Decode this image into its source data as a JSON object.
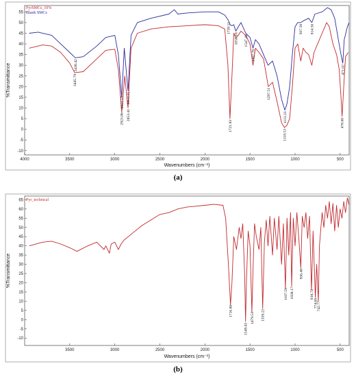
{
  "chart_data": [
    {
      "panel": "(a)",
      "type": "line",
      "xlabel": "Wavenumbers (cm⁻¹)",
      "ylabel": "%Transmittance",
      "xlim": [
        4000,
        400
      ],
      "ylim": [
        -12,
        58
      ],
      "x_ticks": [
        4000,
        3500,
        3000,
        2500,
        2000,
        1500,
        1000,
        500
      ],
      "y_ticks": [
        -10,
        -5,
        0,
        5,
        10,
        15,
        20,
        25,
        30,
        35,
        40,
        45,
        50,
        55
      ],
      "legend_position": "top-left",
      "series": [
        {
          "name": "PyrSMCs_10%",
          "color": "#c0282d",
          "points": [
            [
              3950,
              38
            ],
            [
              3800,
              39.5
            ],
            [
              3700,
              39
            ],
            [
              3600,
              36
            ],
            [
              3500,
              31
            ],
            [
              3445,
              26.5
            ],
            [
              3350,
              27
            ],
            [
              3200,
              33
            ],
            [
              3100,
              37
            ],
            [
              3000,
              37.5
            ],
            [
              2960,
              28
            ],
            [
              2923,
              8
            ],
            [
              2890,
              25
            ],
            [
              2853,
              10
            ],
            [
              2820,
              38
            ],
            [
              2750,
              45
            ],
            [
              2600,
              47
            ],
            [
              2400,
              48
            ],
            [
              2200,
              48.5
            ],
            [
              2000,
              49
            ],
            [
              1850,
              48.5
            ],
            [
              1780,
              47
            ],
            [
              1745,
              30
            ],
            [
              1722,
              5
            ],
            [
              1700,
              25
            ],
            [
              1680,
              45
            ],
            [
              1658,
              43
            ],
            [
              1630,
              44
            ],
            [
              1600,
              46
            ],
            [
              1547,
              44
            ],
            [
              1500,
              40
            ],
            [
              1467,
              30
            ],
            [
              1440,
              38
            ],
            [
              1400,
              36
            ],
            [
              1350,
              33
            ],
            [
              1297,
              20
            ],
            [
              1250,
              22
            ],
            [
              1200,
              13
            ],
            [
              1150,
              3
            ],
            [
              1118,
              0.8
            ],
            [
              1090,
              2
            ],
            [
              1060,
              5
            ],
            [
              1030,
              20
            ],
            [
              1000,
              38
            ],
            [
              970,
              40
            ],
            [
              937,
              32
            ],
            [
              910,
              38
            ],
            [
              880,
              36
            ],
            [
              850,
              35
            ],
            [
              814,
              30
            ],
            [
              790,
              36
            ],
            [
              750,
              40
            ],
            [
              700,
              45
            ],
            [
              650,
              50
            ],
            [
              620,
              48
            ],
            [
              580,
              40
            ],
            [
              540,
              35
            ],
            [
              510,
              28
            ],
            [
              490,
              15
            ],
            [
              478,
              6
            ],
            [
              460,
              20
            ],
            [
              440,
              34
            ],
            [
              410,
              36
            ]
          ],
          "annotations": [
            {
              "x": 3445.79,
              "label": "3445.79"
            },
            {
              "x": 2923.86,
              "label": "2923.86"
            },
            {
              "x": 2853.41,
              "label": "2853.41"
            },
            {
              "x": 1721.93,
              "label": "1721.93"
            },
            {
              "x": 1297.51,
              "label": "1297.51"
            },
            {
              "x": 1118.53,
              "label": "1118.53"
            },
            {
              "x": 478.0,
              "label": "478.00"
            }
          ]
        },
        {
          "name": "Blank SMCs",
          "color": "#2a2a9c",
          "points": [
            [
              3950,
              45
            ],
            [
              3850,
              45.5
            ],
            [
              3700,
              44
            ],
            [
              3600,
              40
            ],
            [
              3500,
              36
            ],
            [
              3438,
              33.5
            ],
            [
              3350,
              34
            ],
            [
              3200,
              39
            ],
            [
              3100,
              43
            ],
            [
              3000,
              44
            ],
            [
              2960,
              35
            ],
            [
              2923,
              15
            ],
            [
              2895,
              38
            ],
            [
              2853,
              18
            ],
            [
              2820,
              44
            ],
            [
              2750,
              50
            ],
            [
              2600,
              52
            ],
            [
              2400,
              54
            ],
            [
              2340,
              56
            ],
            [
              2300,
              54
            ],
            [
              2200,
              54.5
            ],
            [
              2000,
              55
            ],
            [
              1850,
              55
            ],
            [
              1780,
              53.5
            ],
            [
              1740,
              51
            ],
            [
              1720,
              49
            ],
            [
              1700,
              48.5
            ],
            [
              1680,
              49
            ],
            [
              1658,
              46
            ],
            [
              1630,
              48
            ],
            [
              1600,
              50
            ],
            [
              1547,
              45
            ],
            [
              1500,
              43
            ],
            [
              1467,
              38
            ],
            [
              1440,
              42
            ],
            [
              1400,
              40
            ],
            [
              1300,
              30
            ],
            [
              1250,
              32
            ],
            [
              1200,
              25
            ],
            [
              1150,
              14
            ],
            [
              1113,
              9
            ],
            [
              1090,
              12
            ],
            [
              1060,
              20
            ],
            [
              1030,
              35
            ],
            [
              1000,
              48
            ],
            [
              970,
              50
            ],
            [
              937,
              50
            ],
            [
              900,
              51
            ],
            [
              850,
              52
            ],
            [
              814,
              50
            ],
            [
              780,
              54
            ],
            [
              700,
              55
            ],
            [
              640,
              57
            ],
            [
              600,
              56
            ],
            [
              560,
              52
            ],
            [
              520,
              42
            ],
            [
              490,
              35
            ],
            [
              471,
              31
            ],
            [
              455,
              42
            ],
            [
              420,
              48
            ],
            [
              400,
              50
            ]
          ],
          "annotations": [
            {
              "x": 3438.42,
              "label": "3438.42"
            },
            {
              "x": 2921.57,
              "label": "2921.57"
            },
            {
              "x": 2853.31,
              "label": "2853.31"
            },
            {
              "x": 1739.11,
              "label": "1739.11"
            },
            {
              "x": 1658.1,
              "label": "1658.10"
            },
            {
              "x": 1547.4,
              "label": "1547.40"
            },
            {
              "x": 1467.78,
              "label": "1467.78"
            },
            {
              "x": 1113.33,
              "label": "1113.33"
            },
            {
              "x": 937.58,
              "label": "937.58"
            },
            {
              "x": 814.56,
              "label": "814.56"
            },
            {
              "x": 471.02,
              "label": "471.02"
            }
          ]
        }
      ]
    },
    {
      "panel": "(b)",
      "type": "line",
      "xlabel": "Wavenumbers (cm⁻¹)",
      "ylabel": "%Transmittance",
      "xlim": [
        4000,
        400
      ],
      "ylim": [
        -14,
        67
      ],
      "x_ticks": [
        3500,
        3000,
        2500,
        2000,
        1500,
        1000,
        500
      ],
      "y_ticks": [
        -10,
        -5,
        0,
        5,
        10,
        15,
        20,
        25,
        30,
        35,
        40,
        45,
        50,
        55,
        60,
        65
      ],
      "legend_position": "top-left",
      "series": [
        {
          "name": "Pyr_technical",
          "color": "#c0282d",
          "points": [
            [
              3950,
              40
            ],
            [
              3800,
              42
            ],
            [
              3700,
              42.5
            ],
            [
              3600,
              41
            ],
            [
              3500,
              39
            ],
            [
              3420,
              37
            ],
            [
              3300,
              40
            ],
            [
              3200,
              42
            ],
            [
              3120,
              38
            ],
            [
              3100,
              40
            ],
            [
              3060,
              36
            ],
            [
              3040,
              41
            ],
            [
              3000,
              42
            ],
            [
              2960,
              38
            ],
            [
              2930,
              41
            ],
            [
              2900,
              43
            ],
            [
              2800,
              47
            ],
            [
              2700,
              51
            ],
            [
              2600,
              54
            ],
            [
              2500,
              57
            ],
            [
              2400,
              58
            ],
            [
              2300,
              60
            ],
            [
              2200,
              61
            ],
            [
              2100,
              61.5
            ],
            [
              2000,
              62
            ],
            [
              1900,
              62.5
            ],
            [
              1800,
              62
            ],
            [
              1770,
              55
            ],
            [
              1740,
              30
            ],
            [
              1716,
              8
            ],
            [
              1700,
              20
            ],
            [
              1680,
              45
            ],
            [
              1650,
              38
            ],
            [
              1620,
              50
            ],
            [
              1600,
              44
            ],
            [
              1580,
              52
            ],
            [
              1560,
              25
            ],
            [
              1549,
              -1
            ],
            [
              1540,
              20
            ],
            [
              1520,
              48
            ],
            [
              1500,
              40
            ],
            [
              1479,
              4
            ],
            [
              1465,
              30
            ],
            [
              1450,
              52
            ],
            [
              1430,
              45
            ],
            [
              1400,
              38
            ],
            [
              1380,
              50
            ],
            [
              1359,
              6
            ],
            [
              1340,
              42
            ],
            [
              1320,
              54
            ],
            [
              1300,
              40
            ],
            [
              1280,
              56
            ],
            [
              1250,
              35
            ],
            [
              1230,
              55
            ],
            [
              1200,
              38
            ],
            [
              1180,
              56
            ],
            [
              1150,
              30
            ],
            [
              1130,
              52
            ],
            [
              1107,
              17
            ],
            [
              1090,
              55
            ],
            [
              1070,
              35
            ],
            [
              1050,
              58
            ],
            [
              1038,
              18
            ],
            [
              1020,
              55
            ],
            [
              1000,
              40
            ],
            [
              980,
              58
            ],
            [
              960,
              45
            ],
            [
              936,
              28
            ],
            [
              920,
              56
            ],
            [
              900,
              50
            ],
            [
              880,
              58
            ],
            [
              860,
              44
            ],
            [
              840,
              56
            ],
            [
              818,
              16
            ],
            [
              800,
              48
            ],
            [
              775,
              12
            ],
            [
              760,
              30
            ],
            [
              742,
              10
            ],
            [
              730,
              40
            ],
            [
              700,
              58
            ],
            [
              680,
              50
            ],
            [
              660,
              62
            ],
            [
              640,
              55
            ],
            [
              620,
              64
            ],
            [
              600,
              52
            ],
            [
              580,
              63
            ],
            [
              560,
              48
            ],
            [
              540,
              62
            ],
            [
              520,
              50
            ],
            [
              500,
              60
            ],
            [
              480,
              55
            ],
            [
              460,
              64
            ],
            [
              440,
              58
            ],
            [
              420,
              66
            ],
            [
              400,
              62
            ]
          ],
          "annotations": [
            {
              "x": 1716.8,
              "label": "1716.80"
            },
            {
              "x": 1549.03,
              "label": "1549.03"
            },
            {
              "x": 1479.53,
              "label": "1479.53"
            },
            {
              "x": 1359.22,
              "label": "1359.22"
            },
            {
              "x": 1107.59,
              "label": "1107.59"
            },
            {
              "x": 1038.17,
              "label": "1038.17"
            },
            {
              "x": 936.48,
              "label": "936.48"
            },
            {
              "x": 818.72,
              "label": "818.72"
            },
            {
              "x": 774.68,
              "label": "774.68"
            },
            {
              "x": 742.77,
              "label": "742.77"
            }
          ]
        }
      ]
    }
  ],
  "captions": [
    "(a)",
    "(b)"
  ]
}
